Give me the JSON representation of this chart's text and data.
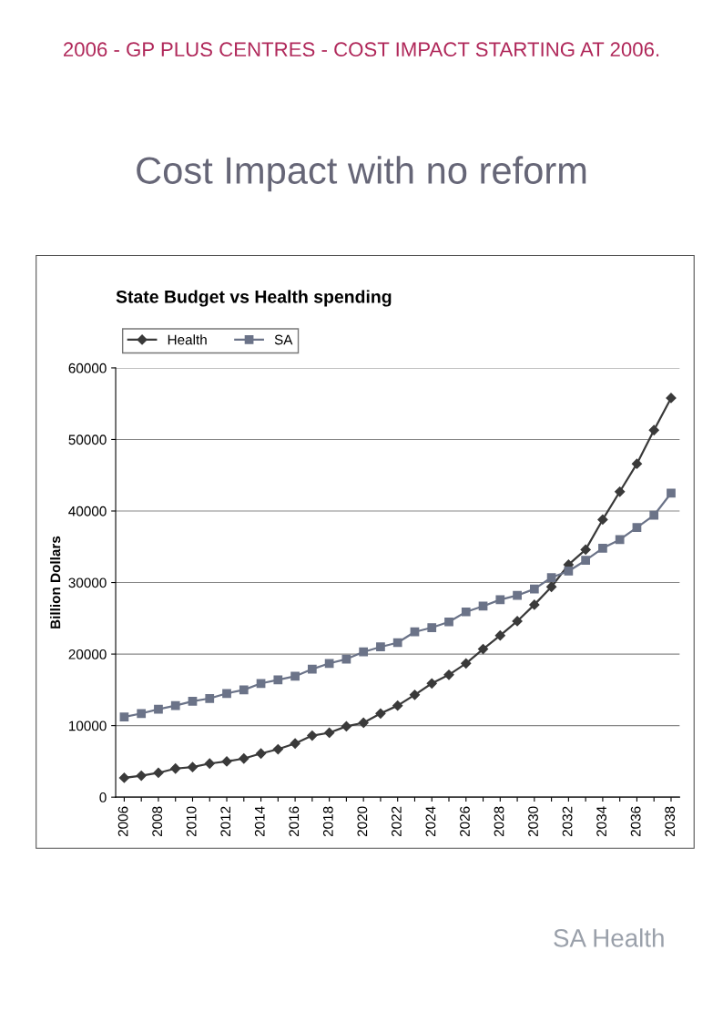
{
  "chart_data": {
    "type": "line",
    "title": "State Budget vs Health spending",
    "ylabel": "Billion Dollars",
    "categories": [
      "2006",
      null,
      "2008",
      null,
      "2010",
      null,
      "2012",
      null,
      "2014",
      null,
      "2016",
      null,
      "2018",
      null,
      "2020",
      null,
      "2022",
      null,
      "2024",
      null,
      "2026",
      null,
      "2028",
      null,
      "2030",
      null,
      "2032",
      null,
      "2034",
      null,
      "2036",
      null,
      "2038"
    ],
    "series": [
      {
        "name": "Health",
        "color": "#3a3a3a",
        "marker": "diamond",
        "values": [
          2700,
          3000,
          3400,
          4000,
          4200,
          4700,
          5000,
          5400,
          6100,
          6700,
          7500,
          8600,
          9000,
          9900,
          10400,
          11700,
          12800,
          14300,
          15900,
          17100,
          18700,
          20700,
          22600,
          24600,
          26900,
          29400,
          32500,
          34600,
          38800,
          42700,
          46600,
          51300,
          55800
        ]
      },
      {
        "name": "SA",
        "color": "#6b7388",
        "marker": "square",
        "values": [
          11200,
          11700,
          12300,
          12800,
          13400,
          13800,
          14500,
          15000,
          15900,
          16400,
          16900,
          17900,
          18700,
          19300,
          20300,
          21000,
          21600,
          23100,
          23700,
          24500,
          25900,
          26700,
          27600,
          28200,
          29100,
          30700,
          31600,
          33100,
          34800,
          36000,
          37700,
          39400,
          42500
        ]
      }
    ],
    "ylim": [
      0,
      60000
    ],
    "yticks": [
      0,
      10000,
      20000,
      30000,
      40000,
      50000,
      60000
    ],
    "grid": "y",
    "legend": "top",
    "line_style": "solid",
    "annotations": [
      "2006 - GP PLUS CENTRES - COST IMPACT STARTING AT 2006.",
      "Cost Impact with no reform",
      "SA Health"
    ]
  }
}
